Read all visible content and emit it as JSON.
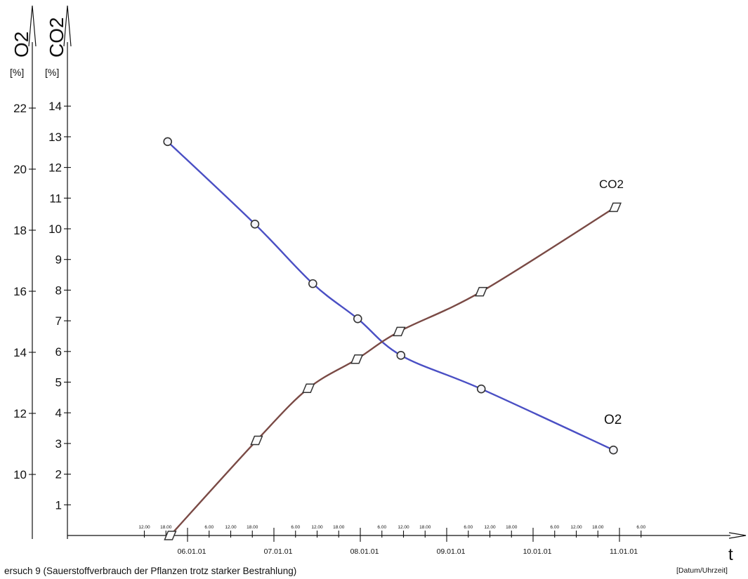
{
  "chart_data": {
    "type": "line",
    "title": "",
    "caption": "ersuch 9   (Sauerstoffverbrauch der Pflanzen trotz starker Bestrahlung)",
    "x_axis": {
      "label": "t",
      "unit": "[Datum/Uhrzeit]",
      "dates": [
        "06.01.01",
        "07.01.01",
        "08.01.01",
        "09.01.01",
        "10.01.01",
        "11.01.01"
      ],
      "time_ticks": [
        {
          "t": 5.5,
          "label": "12.00"
        },
        {
          "t": 5.75,
          "label": "18.00"
        },
        {
          "t": 6.25,
          "label": "6.00"
        },
        {
          "t": 6.5,
          "label": "12.00"
        },
        {
          "t": 6.75,
          "label": "18.00"
        },
        {
          "t": 7.25,
          "label": "6.00"
        },
        {
          "t": 7.5,
          "label": "12.00"
        },
        {
          "t": 7.75,
          "label": "18.00"
        },
        {
          "t": 8.25,
          "label": "6.00"
        },
        {
          "t": 8.5,
          "label": "12.00"
        },
        {
          "t": 8.75,
          "label": "18.00"
        },
        {
          "t": 9.25,
          "label": "6.00"
        },
        {
          "t": 9.5,
          "label": "12.00"
        },
        {
          "t": 9.75,
          "label": "18.00"
        },
        {
          "t": 10.25,
          "label": "6.00"
        },
        {
          "t": 10.5,
          "label": "12.00"
        },
        {
          "t": 10.75,
          "label": "18.00"
        },
        {
          "t": 11.25,
          "label": "6.00"
        }
      ],
      "range": [
        4.8,
        11.6
      ]
    },
    "y_axis_left": {
      "label": "O2",
      "unit": "[%]",
      "ticks": [
        10,
        12,
        14,
        16,
        18,
        20,
        22
      ],
      "range": [
        8,
        23
      ]
    },
    "y_axis_right": {
      "label": "CO2",
      "unit": "[%]",
      "ticks": [
        1,
        2,
        3,
        4,
        5,
        6,
        7,
        8,
        9,
        10,
        11,
        12,
        13,
        14
      ],
      "range": [
        0,
        15
      ]
    },
    "series": [
      {
        "name": "O2",
        "axis": "left",
        "color": "#4a4fc4",
        "marker": "circle",
        "x": [
          5.77,
          6.78,
          7.45,
          7.97,
          8.47,
          9.4,
          10.93
        ],
        "y": [
          20.9,
          18.2,
          16.25,
          15.1,
          13.9,
          12.8,
          10.8
        ]
      },
      {
        "name": "CO2",
        "axis": "right",
        "color": "#7a4a45",
        "marker": "diamond",
        "x": [
          5.8,
          6.8,
          7.4,
          7.96,
          8.45,
          9.4,
          10.95
        ],
        "y": [
          0.0,
          3.1,
          4.8,
          5.75,
          6.65,
          7.95,
          10.7
        ]
      }
    ],
    "grid": false,
    "legend": "inline labels near line ends"
  }
}
